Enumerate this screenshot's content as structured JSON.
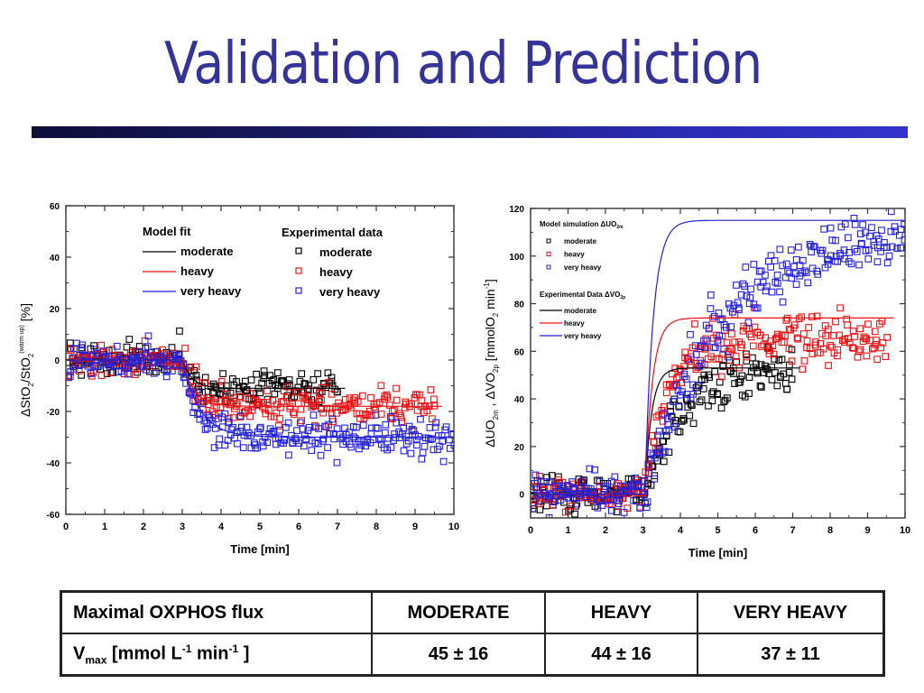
{
  "slide": {
    "title": "Validation and Prediction",
    "accent_color": "#333399",
    "bar_gradient": [
      "#0d0d3a",
      "#3333cc"
    ]
  },
  "chart_data": [
    {
      "id": "left",
      "type": "scatter",
      "title": "",
      "xlabel": "Time [min]",
      "ylabel_parts": {
        "delta": "Δ",
        "main": "StO",
        "sub1": "2",
        "slash": "/StO",
        "sub2": "2",
        "sup": "(warm up)",
        "unit": " [%]"
      },
      "xlim": [
        0,
        10
      ],
      "ylim": [
        -60,
        60
      ],
      "xticks": [
        0,
        1,
        2,
        3,
        4,
        5,
        6,
        7,
        8,
        9,
        10
      ],
      "yticks": [
        -60,
        -40,
        -20,
        0,
        20,
        40,
        60
      ],
      "grid": false,
      "legend": {
        "placement": "top-center",
        "model_title": "Model fit",
        "data_title": "Experimental data",
        "entries": [
          "moderate",
          "heavy",
          "very heavy"
        ]
      },
      "series": [
        {
          "name": "moderate",
          "color": "#000000",
          "onset": 3.0,
          "baseline": 0,
          "amplitude": -11,
          "tau": 0.25,
          "fit_end": 7.2,
          "data_end": 7.0,
          "noise": 3.0,
          "baseline_noise": 3.0
        },
        {
          "name": "heavy",
          "color": "#ee1111",
          "onset": 3.0,
          "baseline": 0,
          "amplitude": -18,
          "tau": 0.3,
          "fit_end": 9.7,
          "data_end": 9.5,
          "noise": 3.2,
          "baseline_noise": 3.0
        },
        {
          "name": "very heavy",
          "color": "#2222dd",
          "onset": 3.0,
          "baseline": 0,
          "amplitude": -30,
          "tau": 0.45,
          "fit_end": 10.0,
          "data_end": 10.0,
          "noise": 3.4,
          "baseline_noise": 3.0
        }
      ]
    },
    {
      "id": "right",
      "type": "scatter",
      "title": "",
      "xlabel": "Time [min]",
      "ylabel_parts": {
        "delta1": "ΔUO",
        "sub1": "2m",
        "sep": " , ",
        "delta2": "ΔVO",
        "sub2": "2p",
        "unit_a": "  [mmolO",
        "sub3": "2",
        "unit_b": " min",
        "sup": "-1",
        "unit_c": "]"
      },
      "xlim": [
        0,
        10
      ],
      "ylim": [
        -10,
        120
      ],
      "xticks": [
        0,
        1,
        2,
        3,
        4,
        5,
        6,
        7,
        8,
        9,
        10
      ],
      "yticks": [
        0,
        20,
        40,
        60,
        80,
        100,
        120
      ],
      "grid": false,
      "legend": {
        "placement": "top-left",
        "model_title": "Model simulation ΔUO",
        "model_title_sub": "2m",
        "data_title": "Experimental Data ΔVO",
        "data_title_sub": "2p",
        "entries": [
          "moderate",
          "heavy",
          "very heavy"
        ]
      },
      "series": [
        {
          "name": "moderate",
          "color": "#000000",
          "onset": 3.05,
          "baseline": 0,
          "amplitude": 53,
          "tau": 0.18,
          "fit_end": 7.2,
          "data_end": 7.0,
          "data_tau": 0.9,
          "data_plateau": 52,
          "noise": 5.0,
          "baseline_noise": 3.5
        },
        {
          "name": "heavy",
          "color": "#ee1111",
          "onset": 3.05,
          "baseline": 0,
          "amplitude": 74,
          "tau": 0.2,
          "fit_end": 9.7,
          "data_end": 9.5,
          "data_tau": 0.6,
          "data_plateau": 66,
          "noise": 5.0,
          "baseline_noise": 3.5
        },
        {
          "name": "very heavy",
          "color": "#2222dd",
          "onset": 3.05,
          "baseline": 0,
          "amplitude": 115,
          "tau": 0.22,
          "fit_end": 10.0,
          "data_end": 10.0,
          "data_tau": 2.0,
          "data_plateau": 112,
          "noise": 6.5,
          "baseline_noise": 4.0
        }
      ]
    }
  ],
  "table": {
    "header": [
      "Maximal OXPHOS flux",
      "MODERATE",
      "HEAVY",
      "VERY HEAVY"
    ],
    "row_label": {
      "main": "V",
      "sub": "max",
      "open": " [mmol L",
      "sup1": "-1",
      "mid": " min",
      "sup2": "-1",
      "close": " ]"
    },
    "row_values": [
      "45 ± 16",
      "44 ± 16",
      "37 ± 11"
    ]
  }
}
